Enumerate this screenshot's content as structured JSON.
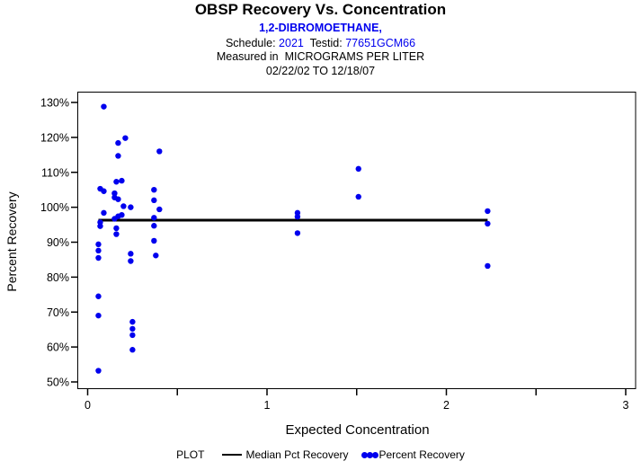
{
  "header": {
    "title": "OBSP Recovery Vs. Concentration",
    "subtitle": "1,2-DIBROMOETHANE,",
    "schedule_label": "Schedule:",
    "schedule_value": "2021",
    "testid_label": "Testid:",
    "testid_value": "77651GCM66",
    "measured_line": "Measured in  MICROGRAMS PER LITER",
    "date_range": "02/22/02 TO 12/18/07"
  },
  "colors": {
    "accent_blue": "#0000EE",
    "axis_black": "#000000"
  },
  "chart_data": {
    "type": "scatter",
    "title": "OBSP Recovery Vs. Concentration",
    "xlabel": "Expected Concentration",
    "ylabel": "Percent Recovery",
    "grid": false,
    "xlim": [
      -0.06,
      3.06
    ],
    "ylim_percent": [
      48,
      133
    ],
    "x_major_ticks": [
      0,
      1,
      2,
      3
    ],
    "x_minor_ticks": [
      0.5,
      1.5,
      2.5
    ],
    "x_tick_labels": [
      "0",
      "1",
      "2",
      "3"
    ],
    "y_ticks": [
      50,
      60,
      70,
      80,
      90,
      100,
      110,
      120,
      130
    ],
    "y_tick_suffix": "%",
    "legend": {
      "position": "bottom",
      "plot_label": "PLOT",
      "entries": [
        "Median Pct Recovery",
        "Percent Recovery"
      ]
    },
    "series": [
      {
        "name": "Median Pct Recovery",
        "type": "line",
        "color": "#000000",
        "median_percent": 96.3,
        "x_start": 0.06,
        "x_end": 2.23
      },
      {
        "name": "Percent Recovery",
        "type": "scatter",
        "color": "#0000EE",
        "points": [
          [
            0.09,
            128.8
          ],
          [
            0.21,
            119.8
          ],
          [
            0.17,
            118.4
          ],
          [
            0.4,
            116.0
          ],
          [
            0.17,
            114.7
          ],
          [
            0.16,
            107.3
          ],
          [
            0.19,
            107.6
          ],
          [
            0.07,
            105.3
          ],
          [
            0.09,
            104.6
          ],
          [
            0.37,
            105.0
          ],
          [
            0.15,
            104.0
          ],
          [
            0.15,
            102.8
          ],
          [
            0.17,
            102.3
          ],
          [
            0.37,
            102.0
          ],
          [
            0.2,
            100.3
          ],
          [
            0.24,
            100.0
          ],
          [
            0.4,
            99.4
          ],
          [
            0.09,
            98.4
          ],
          [
            0.19,
            97.8
          ],
          [
            0.17,
            97.4
          ],
          [
            0.37,
            97.0
          ],
          [
            0.15,
            96.7
          ],
          [
            0.07,
            95.7
          ],
          [
            0.07,
            94.6
          ],
          [
            0.37,
            94.7
          ],
          [
            0.16,
            94.0
          ],
          [
            0.16,
            92.3
          ],
          [
            0.37,
            90.4
          ],
          [
            0.06,
            89.4
          ],
          [
            0.06,
            87.6
          ],
          [
            0.06,
            85.5
          ],
          [
            0.24,
            86.7
          ],
          [
            0.24,
            84.6
          ],
          [
            0.38,
            86.2
          ],
          [
            0.06,
            74.5
          ],
          [
            0.06,
            69.0
          ],
          [
            0.25,
            67.2
          ],
          [
            0.25,
            65.2
          ],
          [
            0.25,
            63.4
          ],
          [
            0.25,
            59.2
          ],
          [
            0.06,
            53.2
          ],
          [
            1.17,
            98.4
          ],
          [
            1.17,
            97.3
          ],
          [
            1.17,
            92.6
          ],
          [
            1.51,
            111.0
          ],
          [
            1.51,
            103.0
          ],
          [
            2.23,
            98.9
          ],
          [
            2.23,
            95.3
          ],
          [
            2.23,
            83.2
          ]
        ]
      }
    ]
  }
}
